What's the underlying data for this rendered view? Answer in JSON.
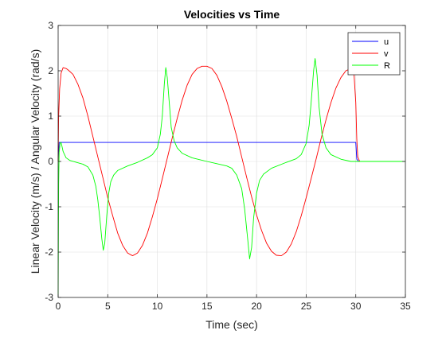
{
  "chart_data": {
    "type": "line",
    "title": "Velocities vs Time",
    "xlabel": "Time (sec)",
    "ylabel": "Linear Velocity (m/s) / Angular Velocity (rad/s)",
    "xlim": [
      0,
      35
    ],
    "ylim": [
      -3,
      3
    ],
    "xticks": [
      0,
      5,
      10,
      15,
      20,
      25,
      30,
      35
    ],
    "yticks": [
      -3,
      -2,
      -1,
      0,
      1,
      2,
      3
    ],
    "grid": true,
    "legend_position": "top-right",
    "series": [
      {
        "name": "u",
        "color": "#0000ff",
        "points": [
          [
            0,
            0
          ],
          [
            0.1,
            0.42
          ],
          [
            0.3,
            0.42
          ],
          [
            30,
            0.42
          ],
          [
            30.1,
            0.05
          ],
          [
            30.3,
            0
          ],
          [
            35,
            0
          ]
        ]
      },
      {
        "name": "v",
        "color": "#ff0000",
        "points": [
          [
            0,
            0
          ],
          [
            0.05,
            1.0
          ],
          [
            0.15,
            1.6
          ],
          [
            0.3,
            1.95
          ],
          [
            0.5,
            2.07
          ],
          [
            0.8,
            2.05
          ],
          [
            1.0,
            2.02
          ],
          [
            1.5,
            1.92
          ],
          [
            2.0,
            1.7
          ],
          [
            2.5,
            1.4
          ],
          [
            3.0,
            1.0
          ],
          [
            3.5,
            0.55
          ],
          [
            4.0,
            0.1
          ],
          [
            4.5,
            -0.35
          ],
          [
            5.0,
            -0.8
          ],
          [
            5.5,
            -1.2
          ],
          [
            6.0,
            -1.58
          ],
          [
            6.5,
            -1.85
          ],
          [
            7.0,
            -2.02
          ],
          [
            7.5,
            -2.08
          ],
          [
            8.0,
            -2.02
          ],
          [
            8.5,
            -1.85
          ],
          [
            9.0,
            -1.58
          ],
          [
            9.5,
            -1.22
          ],
          [
            10.0,
            -0.82
          ],
          [
            10.5,
            -0.38
          ],
          [
            11.0,
            0.07
          ],
          [
            11.5,
            0.52
          ],
          [
            12.0,
            0.95
          ],
          [
            12.5,
            1.35
          ],
          [
            13.0,
            1.68
          ],
          [
            13.5,
            1.92
          ],
          [
            14.0,
            2.05
          ],
          [
            14.5,
            2.1
          ],
          [
            15.0,
            2.1
          ],
          [
            15.5,
            2.05
          ],
          [
            16.0,
            1.9
          ],
          [
            16.5,
            1.65
          ],
          [
            17.0,
            1.33
          ],
          [
            17.5,
            0.95
          ],
          [
            18.0,
            0.55
          ],
          [
            18.5,
            0.1
          ],
          [
            19.0,
            -0.35
          ],
          [
            19.5,
            -0.78
          ],
          [
            20.0,
            -1.18
          ],
          [
            20.5,
            -1.52
          ],
          [
            21.0,
            -1.8
          ],
          [
            21.5,
            -1.98
          ],
          [
            22.0,
            -2.07
          ],
          [
            22.5,
            -2.08
          ],
          [
            23.0,
            -2.0
          ],
          [
            23.5,
            -1.82
          ],
          [
            24.0,
            -1.55
          ],
          [
            24.5,
            -1.2
          ],
          [
            25.0,
            -0.8
          ],
          [
            25.5,
            -0.38
          ],
          [
            26.0,
            0.05
          ],
          [
            26.5,
            0.5
          ],
          [
            27.0,
            0.92
          ],
          [
            27.5,
            1.3
          ],
          [
            28.0,
            1.62
          ],
          [
            28.5,
            1.85
          ],
          [
            29.0,
            2.0
          ],
          [
            29.5,
            2.05
          ],
          [
            29.8,
            2.0
          ],
          [
            30.0,
            1.3
          ],
          [
            30.1,
            0.5
          ],
          [
            30.2,
            0.1
          ],
          [
            30.4,
            0
          ],
          [
            35,
            0
          ]
        ]
      },
      {
        "name": "R",
        "color": "#00ff00",
        "points": [
          [
            0,
            -3
          ],
          [
            0.05,
            -0.5
          ],
          [
            0.1,
            0.2
          ],
          [
            0.2,
            0.4
          ],
          [
            0.3,
            0.42
          ],
          [
            0.5,
            0.22
          ],
          [
            0.8,
            0.08
          ],
          [
            1.2,
            0.02
          ],
          [
            2.0,
            -0.03
          ],
          [
            2.5,
            -0.06
          ],
          [
            3.0,
            -0.12
          ],
          [
            3.5,
            -0.3
          ],
          [
            3.8,
            -0.55
          ],
          [
            4.0,
            -0.85
          ],
          [
            4.2,
            -1.25
          ],
          [
            4.4,
            -1.7
          ],
          [
            4.55,
            -1.96
          ],
          [
            4.7,
            -1.8
          ],
          [
            4.9,
            -1.2
          ],
          [
            5.1,
            -0.7
          ],
          [
            5.3,
            -0.45
          ],
          [
            5.6,
            -0.3
          ],
          [
            6.0,
            -0.2
          ],
          [
            7.0,
            -0.1
          ],
          [
            8.0,
            -0.02
          ],
          [
            9.0,
            0.08
          ],
          [
            9.5,
            0.15
          ],
          [
            10.0,
            0.3
          ],
          [
            10.3,
            0.6
          ],
          [
            10.5,
            1.0
          ],
          [
            10.7,
            1.7
          ],
          [
            10.85,
            2.07
          ],
          [
            11.0,
            1.85
          ],
          [
            11.2,
            1.3
          ],
          [
            11.4,
            0.75
          ],
          [
            11.7,
            0.45
          ],
          [
            12.0,
            0.3
          ],
          [
            12.5,
            0.18
          ],
          [
            13.5,
            0.08
          ],
          [
            15.0,
            0.0
          ],
          [
            16.0,
            -0.05
          ],
          [
            17.0,
            -0.1
          ],
          [
            17.5,
            -0.15
          ],
          [
            18.0,
            -0.3
          ],
          [
            18.5,
            -0.6
          ],
          [
            18.8,
            -1.05
          ],
          [
            19.1,
            -1.7
          ],
          [
            19.3,
            -2.15
          ],
          [
            19.5,
            -1.9
          ],
          [
            19.7,
            -1.25
          ],
          [
            20.0,
            -0.7
          ],
          [
            20.3,
            -0.42
          ],
          [
            20.7,
            -0.28
          ],
          [
            21.5,
            -0.15
          ],
          [
            23.0,
            -0.02
          ],
          [
            24.0,
            0.06
          ],
          [
            24.5,
            0.15
          ],
          [
            25.0,
            0.4
          ],
          [
            25.3,
            0.8
          ],
          [
            25.5,
            1.3
          ],
          [
            25.75,
            2.0
          ],
          [
            25.9,
            2.27
          ],
          [
            26.1,
            1.9
          ],
          [
            26.3,
            1.2
          ],
          [
            26.6,
            0.6
          ],
          [
            27.0,
            0.3
          ],
          [
            27.5,
            0.15
          ],
          [
            28.5,
            0.05
          ],
          [
            29.5,
            0.0
          ],
          [
            30.0,
            0.0
          ],
          [
            35,
            0
          ]
        ]
      }
    ]
  }
}
